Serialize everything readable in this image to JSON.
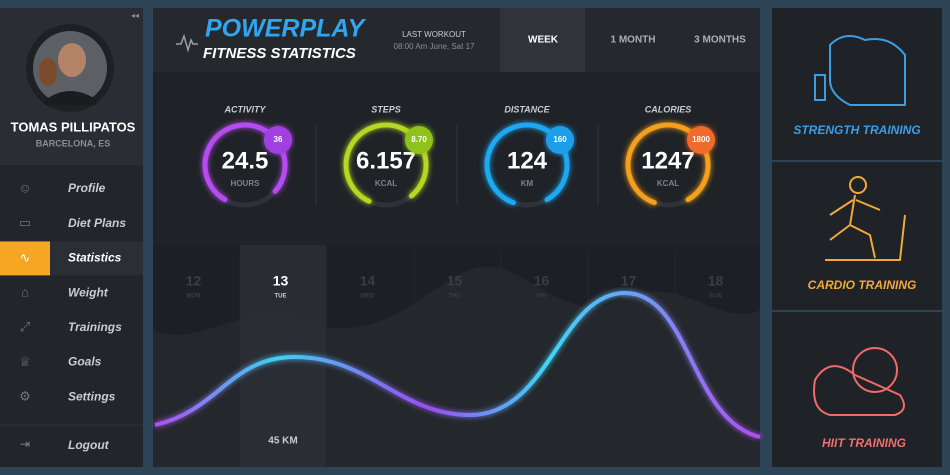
{
  "profile": {
    "name": "TOMAS PILLIPATOS",
    "location": "BARCELONA, ES"
  },
  "menu": [
    "Profile",
    "Diet Plans",
    "Statistics",
    "Weight",
    "Trainings",
    "Goals",
    "Settings"
  ],
  "logout": "Logout",
  "header": {
    "title": "POWERPLAY",
    "subtitle": "FITNESS STATISTICS",
    "last_workout_label": "LAST WORKOUT",
    "last_workout": "08:00 Am June, Sat 17",
    "tabs": [
      "WEEK",
      "1 MONTH",
      "3 MONTHS"
    ]
  },
  "stats": [
    {
      "label": "ACTIVITY",
      "value": "24.5",
      "unit": "HOURS",
      "goal": "36"
    },
    {
      "label": "STEPS",
      "value": "6.157",
      "unit": "KCAL",
      "goal": "8.70"
    },
    {
      "label": "DISTANCE",
      "value": "124",
      "unit": "KM",
      "goal": "160"
    },
    {
      "label": "CALORIES",
      "value": "1247",
      "unit": "KCAL",
      "goal": "1800"
    }
  ],
  "days": [
    {
      "date": "12",
      "day": "MON"
    },
    {
      "date": "13",
      "day": "TUE"
    },
    {
      "date": "14",
      "day": "WED"
    },
    {
      "date": "15",
      "day": "THU"
    },
    {
      "date": "16",
      "day": "FRI"
    },
    {
      "date": "17",
      "day": "SAT"
    },
    {
      "date": "18",
      "day": "SUN"
    }
  ],
  "selected_day_distance": "45 KM",
  "trainings": [
    "STRENGTH TRAINING",
    "CARDIO TRAINING",
    "HIIT TRAINING"
  ]
}
